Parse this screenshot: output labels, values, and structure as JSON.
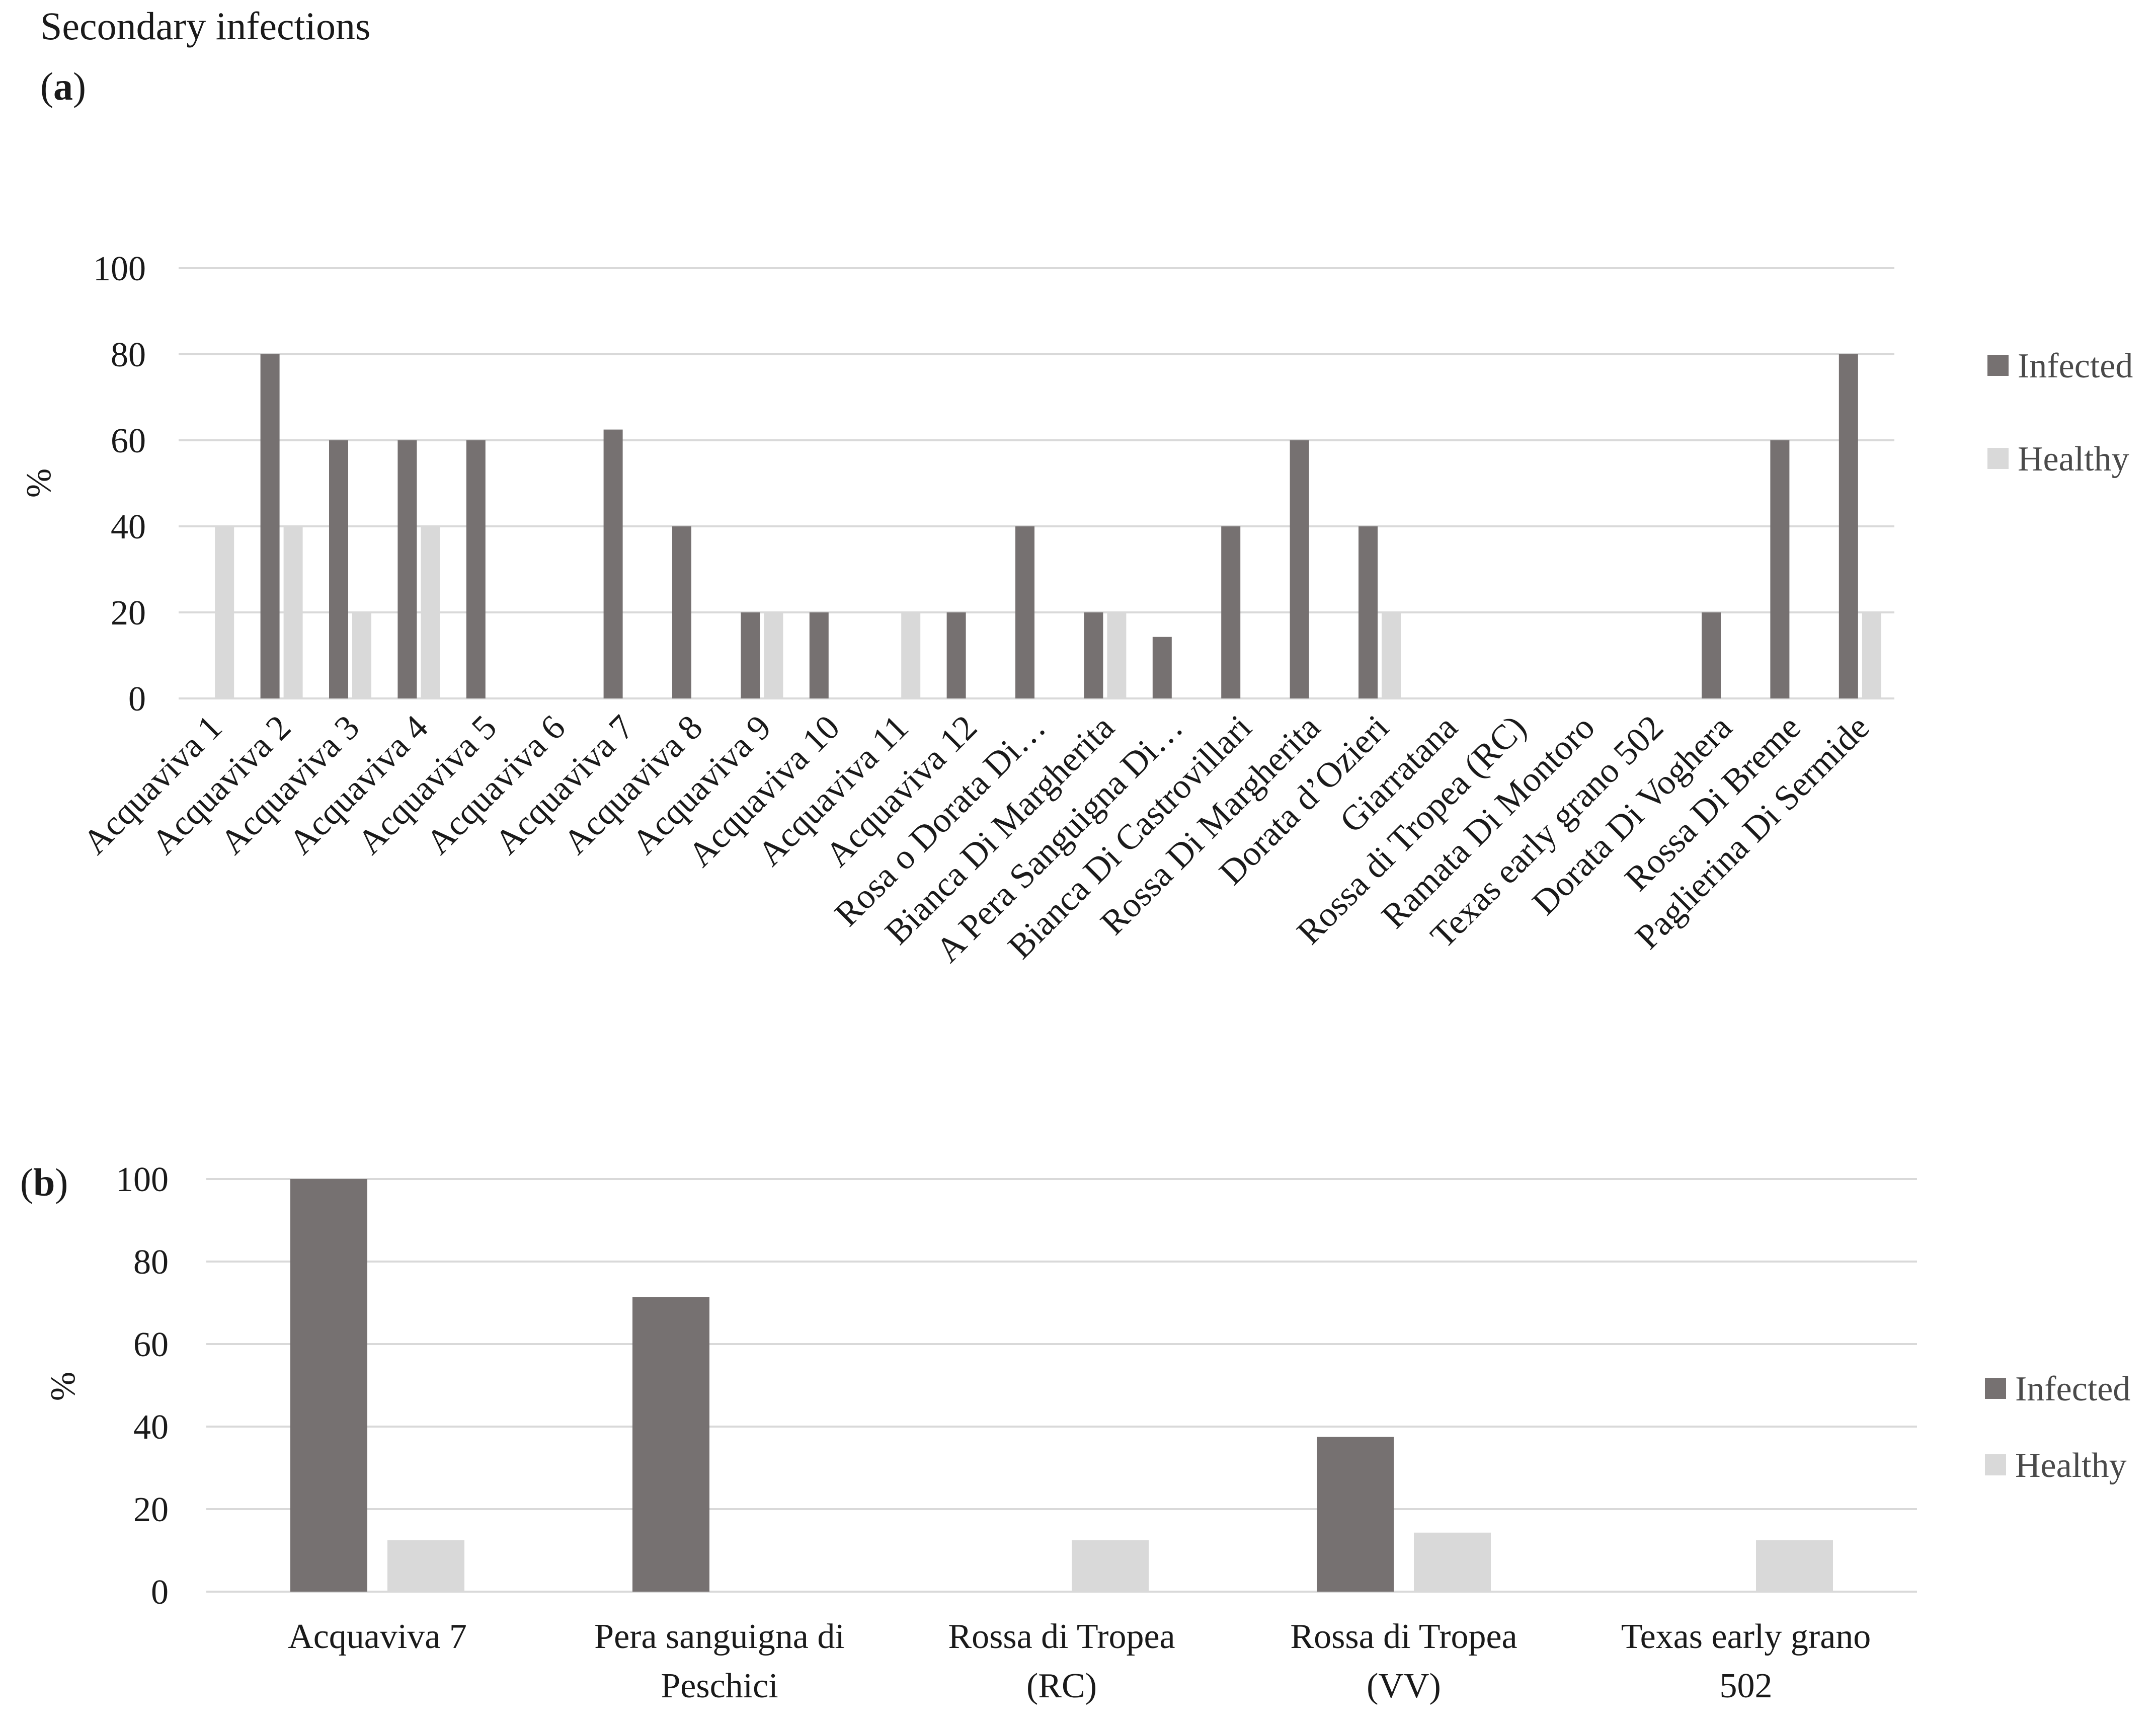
{
  "figure_title": "Secondary infections",
  "colors": {
    "infected": "#767171",
    "healthy": "#d9d9d9",
    "grid": "#d9d9d9",
    "text": "#1a1a1a"
  },
  "chart_data": [
    {
      "panel_label": "a",
      "type": "bar",
      "ylabel": "%",
      "xlabel": "",
      "ylim": [
        0,
        100
      ],
      "yticks": [
        "0",
        "20",
        "40",
        "60",
        "80",
        "100"
      ],
      "grid": true,
      "legend_position": "right",
      "categories": [
        "Acquaviva 1",
        "Acquaviva 2",
        "Acquaviva 3",
        "Acquaviva 4",
        "Acquaviva 5",
        "Acquaviva 6",
        "Acquaviva 7",
        "Acquaviva 8",
        "Acquaviva 9",
        "Acquaviva 10",
        "Acquaviva 11",
        "Acquaviva 12",
        "Rosa o Dorata Di…",
        "Bianca Di Margherita",
        "A Pera Sanguigna Di…",
        "Bianca Di Castrovillari",
        "Rossa Di Margherita",
        "Dorata d’Ozieri",
        "Giarratana",
        "Rossa di Tropea (RC)",
        "Ramata Di Montoro",
        "Texas early grano 502",
        "Dorata Di Voghera",
        "Rossa Di Breme",
        "Paglierina Di Sermide"
      ],
      "series": [
        {
          "name": "Infected",
          "values": [
            0,
            80,
            60,
            60,
            60,
            0,
            62.5,
            40,
            20,
            20,
            0,
            20,
            40,
            20,
            14.3,
            40,
            60,
            40,
            0,
            0,
            0,
            0,
            20,
            60,
            80
          ]
        },
        {
          "name": "Healthy",
          "values": [
            40,
            40,
            20,
            40,
            0,
            0,
            0,
            0,
            20,
            0,
            20,
            0,
            0,
            20,
            0,
            0,
            0,
            20,
            0,
            0,
            0,
            0,
            0,
            0,
            20
          ]
        }
      ]
    },
    {
      "panel_label": "b",
      "type": "bar",
      "ylabel": "%",
      "xlabel": "",
      "ylim": [
        0,
        100
      ],
      "yticks": [
        "0",
        "20",
        "40",
        "60",
        "80",
        "100"
      ],
      "grid": true,
      "legend_position": "right",
      "categories": [
        "Acquaviva 7",
        "Pera sanguigna di Peschici",
        "Rossa di Tropea (RC)",
        "Rossa di Tropea (VV)",
        "Texas early grano 502"
      ],
      "category_lines": [
        [
          "Acquaviva 7"
        ],
        [
          "Pera sanguigna di",
          "Peschici"
        ],
        [
          "Rossa di Tropea",
          "(RC)"
        ],
        [
          "Rossa di Tropea",
          "(VV)"
        ],
        [
          "Texas early grano",
          "502"
        ]
      ],
      "series": [
        {
          "name": "Infected",
          "values": [
            100,
            71.4,
            0,
            37.5,
            0
          ]
        },
        {
          "name": "Healthy",
          "values": [
            12.5,
            0,
            12.5,
            14.3,
            12.5
          ]
        }
      ]
    }
  ]
}
